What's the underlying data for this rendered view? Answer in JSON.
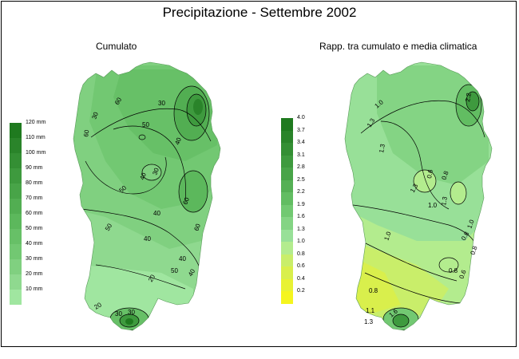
{
  "title": "Precipitazione - Settembre 2002",
  "maps": [
    {
      "subtitle": "Cumulato",
      "legend": {
        "labels": [
          "120 mm",
          "110 mm",
          "100 mm",
          "90 mm",
          "80 mm",
          "70 mm",
          "60 mm",
          "50 mm",
          "40 mm",
          "30 mm",
          "20 mm",
          "10 mm"
        ],
        "colors": [
          "#1f7a1f",
          "#2a842a",
          "#348f34",
          "#3e9a3e",
          "#48a448",
          "#52ae52",
          "#5cb85c",
          "#67c067",
          "#72c872",
          "#80d080",
          "#8fd98f",
          "#a0e6a0"
        ]
      },
      "contour_labels": [
        "30",
        "60",
        "60",
        "50",
        "30",
        "30",
        "50",
        "40",
        "40",
        "50",
        "60",
        "60",
        "40",
        "40",
        "50",
        "20",
        "20",
        "30",
        "30",
        "40",
        "40"
      ]
    },
    {
      "subtitle": "Rapp. tra cumulato e media climatica",
      "legend": {
        "labels": [
          "4.0",
          "3.7",
          "3.4",
          "3.1",
          "2.8",
          "2.5",
          "2.2",
          "1.9",
          "1.6",
          "1.3",
          "1.0",
          "0.8",
          "0.6",
          "0.4",
          "0.2"
        ],
        "colors": [
          "#1f7a1f",
          "#2a842a",
          "#348f34",
          "#3e9a3e",
          "#48a448",
          "#55b055",
          "#62bd62",
          "#72c972",
          "#84d484",
          "#98e098",
          "#b3ec8e",
          "#c9ee6a",
          "#d9ef4c",
          "#e8f234",
          "#f5f51e"
        ]
      },
      "contour_labels": [
        "1.3",
        "1.0",
        "1.3",
        "0.6",
        "0.8",
        "2.2",
        "1.0",
        "1.3",
        "0.8",
        "1.3",
        "1.0",
        "0.8",
        "0.6",
        "0.8",
        "1.0",
        "1.6",
        "1.1",
        "1.3",
        "0.8"
      ]
    }
  ]
}
